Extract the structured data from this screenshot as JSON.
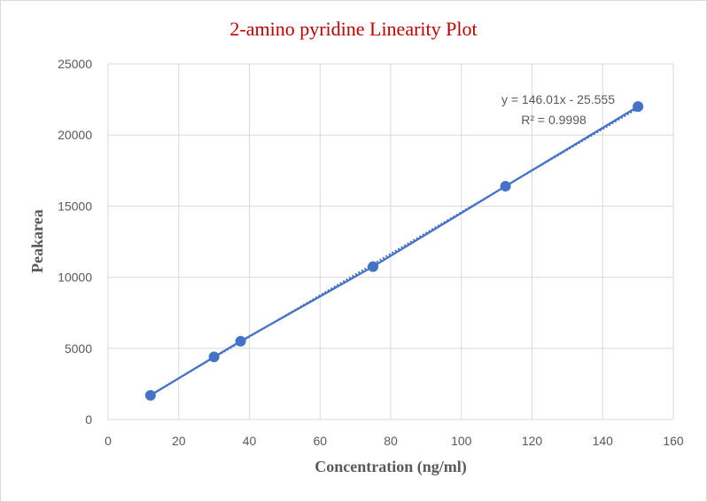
{
  "chart_data": {
    "type": "scatter",
    "title": "2-amino pyridine Linearity Plot",
    "xlabel": "Concentration (ng/ml)",
    "ylabel": "Peakarea",
    "xlim": [
      0,
      160
    ],
    "ylim": [
      0,
      25000
    ],
    "x_ticks": [
      "0",
      "20",
      "40",
      "60",
      "80",
      "100",
      "120",
      "140",
      "160"
    ],
    "y_ticks": [
      "0",
      "5000",
      "10000",
      "15000",
      "20000",
      "25000"
    ],
    "grid": true,
    "legend": "none",
    "series": [
      {
        "x": [
          12,
          30,
          37.5,
          75,
          112.5,
          150
        ],
        "y": [
          1700,
          4400,
          5500,
          10750,
          16400,
          22000
        ],
        "marker": "circle",
        "line": "solid"
      }
    ],
    "trendline": {
      "type": "linear",
      "slope": 146.01,
      "intercept": -25.555,
      "style": "dotted",
      "equation": "y = 146.01x - 25.555",
      "r_squared": "R² = 0.9998"
    },
    "colors": {
      "series": "#4472c4",
      "title": "#c00000",
      "grid": "#d9d9d9",
      "text": "#595959"
    }
  }
}
